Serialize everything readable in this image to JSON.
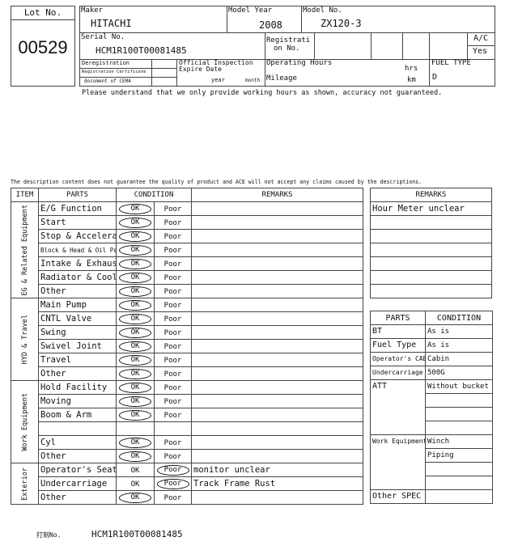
{
  "header": {
    "lot_label": "Lot No.",
    "lot_no": "00529",
    "maker_label": "Maker",
    "maker": "HITACHI",
    "model_year_label": "Model Year",
    "model_year": "2008",
    "model_no_label": "Model No.",
    "model_no": "ZX120-3",
    "serial_label": "Serial No.",
    "serial": "HCM1R100T00081485",
    "registration_label_1": "Registrati",
    "registration_label_2": "on No.",
    "ac_label": "A/C",
    "ac": "Yes",
    "dereg_label": "Deregistration",
    "reg_cert_label": "Registration Certificate",
    "cema_label": "document of CEMA",
    "inspection_label_1": "Official Inspection",
    "inspection_label_2": "Expire Date",
    "year_label": "year",
    "month_label": "month",
    "operating_hours_label": "Operating Hours",
    "hrs_label": "hrs",
    "mileage_label": "Mileage",
    "km_label": "km",
    "fuel_type_label": "FUEL TYPE",
    "fuel_type": "D"
  },
  "notice_hours": "Please understand that we only provide working hours as shown, accuracy not guaranteed.",
  "disclaimer": "The description content does not guarantee the quality of product and ACE will not accept any claims caused by the descriptions.",
  "inspection": {
    "headers": {
      "item": "ITEM",
      "parts": "PARTS",
      "condition": "CONDITION",
      "remarks": "REMARKS"
    },
    "groups": [
      {
        "label": "EG & Related Equipment",
        "rows": [
          {
            "part": "E/G Function",
            "ok": "OK",
            "poor": "Poor",
            "selected": "ok",
            "remark": ""
          },
          {
            "part": "Start",
            "ok": "OK",
            "poor": "Poor",
            "selected": "ok",
            "remark": ""
          },
          {
            "part": "Stop & Accelerator",
            "ok": "OK",
            "poor": "Poor",
            "selected": "ok",
            "remark": ""
          },
          {
            "part": "Block & Head & Oil Pan",
            "ok": "OK",
            "poor": "Poor",
            "selected": "ok",
            "remark": ""
          },
          {
            "part": "Intake & Exhaust",
            "ok": "OK",
            "poor": "Poor",
            "selected": "ok",
            "remark": ""
          },
          {
            "part": "Radiator & Cooling",
            "ok": "OK",
            "poor": "Poor",
            "selected": "ok",
            "remark": ""
          },
          {
            "part": "Other",
            "ok": "OK",
            "poor": "Poor",
            "selected": "ok",
            "remark": ""
          }
        ]
      },
      {
        "label": "HYD & Travel",
        "rows": [
          {
            "part": "Main Pump",
            "ok": "OK",
            "poor": "Poor",
            "selected": "ok",
            "remark": ""
          },
          {
            "part": "CNTL Valve",
            "ok": "OK",
            "poor": "Poor",
            "selected": "ok",
            "remark": ""
          },
          {
            "part": "Swing",
            "ok": "OK",
            "poor": "Poor",
            "selected": "ok",
            "remark": ""
          },
          {
            "part": "Swivel Joint",
            "ok": "OK",
            "poor": "Poor",
            "selected": "ok",
            "remark": ""
          },
          {
            "part": "Travel",
            "ok": "OK",
            "poor": "Poor",
            "selected": "ok",
            "remark": ""
          },
          {
            "part": "Other",
            "ok": "OK",
            "poor": "Poor",
            "selected": "ok",
            "remark": ""
          }
        ]
      },
      {
        "label": "Work Equipment",
        "rows": [
          {
            "part": "Hold Facility",
            "ok": "OK",
            "poor": "Poor",
            "selected": "ok",
            "remark": ""
          },
          {
            "part": "Moving",
            "ok": "OK",
            "poor": "Poor",
            "selected": "ok",
            "remark": ""
          },
          {
            "part": "Boom & Arm",
            "ok": "OK",
            "poor": "Poor",
            "selected": "ok",
            "remark": ""
          },
          {
            "part": "",
            "ok": "",
            "poor": "",
            "selected": "",
            "remark": ""
          },
          {
            "part": "Cyl",
            "ok": "OK",
            "poor": "Poor",
            "selected": "ok",
            "remark": ""
          },
          {
            "part": "Other",
            "ok": "OK",
            "poor": "Poor",
            "selected": "ok",
            "remark": ""
          }
        ]
      },
      {
        "label": "Exterior",
        "rows": [
          {
            "part": "Operator's Seat",
            "ok": "OK",
            "poor": "Poor",
            "selected": "poor",
            "remark": "monitor unclear"
          },
          {
            "part": "Undercarriage",
            "ok": "OK",
            "poor": "Poor",
            "selected": "poor",
            "remark": "Track Frame Rust"
          },
          {
            "part": "Other",
            "ok": "OK",
            "poor": "Poor",
            "selected": "ok",
            "remark": ""
          }
        ]
      }
    ]
  },
  "side_remarks": {
    "header": "REMARKS",
    "rows": [
      "Hour Meter unclear",
      "",
      "",
      "",
      "",
      "",
      ""
    ]
  },
  "side_parts": {
    "headers": {
      "parts": "PARTS",
      "condition": "CONDITION"
    },
    "rows": [
      {
        "part": "BT",
        "conditions": [
          "As is"
        ]
      },
      {
        "part": "Fuel Type",
        "conditions": [
          "As is"
        ]
      },
      {
        "part": "Operator's CAB",
        "conditions": [
          "Cabin"
        ]
      },
      {
        "part": "Undercarriage",
        "conditions": [
          "500G"
        ]
      },
      {
        "part": "ATT",
        "conditions": [
          "Without bucket",
          "",
          "",
          ""
        ]
      },
      {
        "part": "Work Equipment",
        "conditions": [
          "Winch",
          "Piping",
          "",
          ""
        ]
      },
      {
        "part": "Other SPEC",
        "conditions": [
          ""
        ]
      }
    ]
  },
  "stamp": {
    "label": "打刻No.",
    "value": "HCM1R100T00081485"
  }
}
